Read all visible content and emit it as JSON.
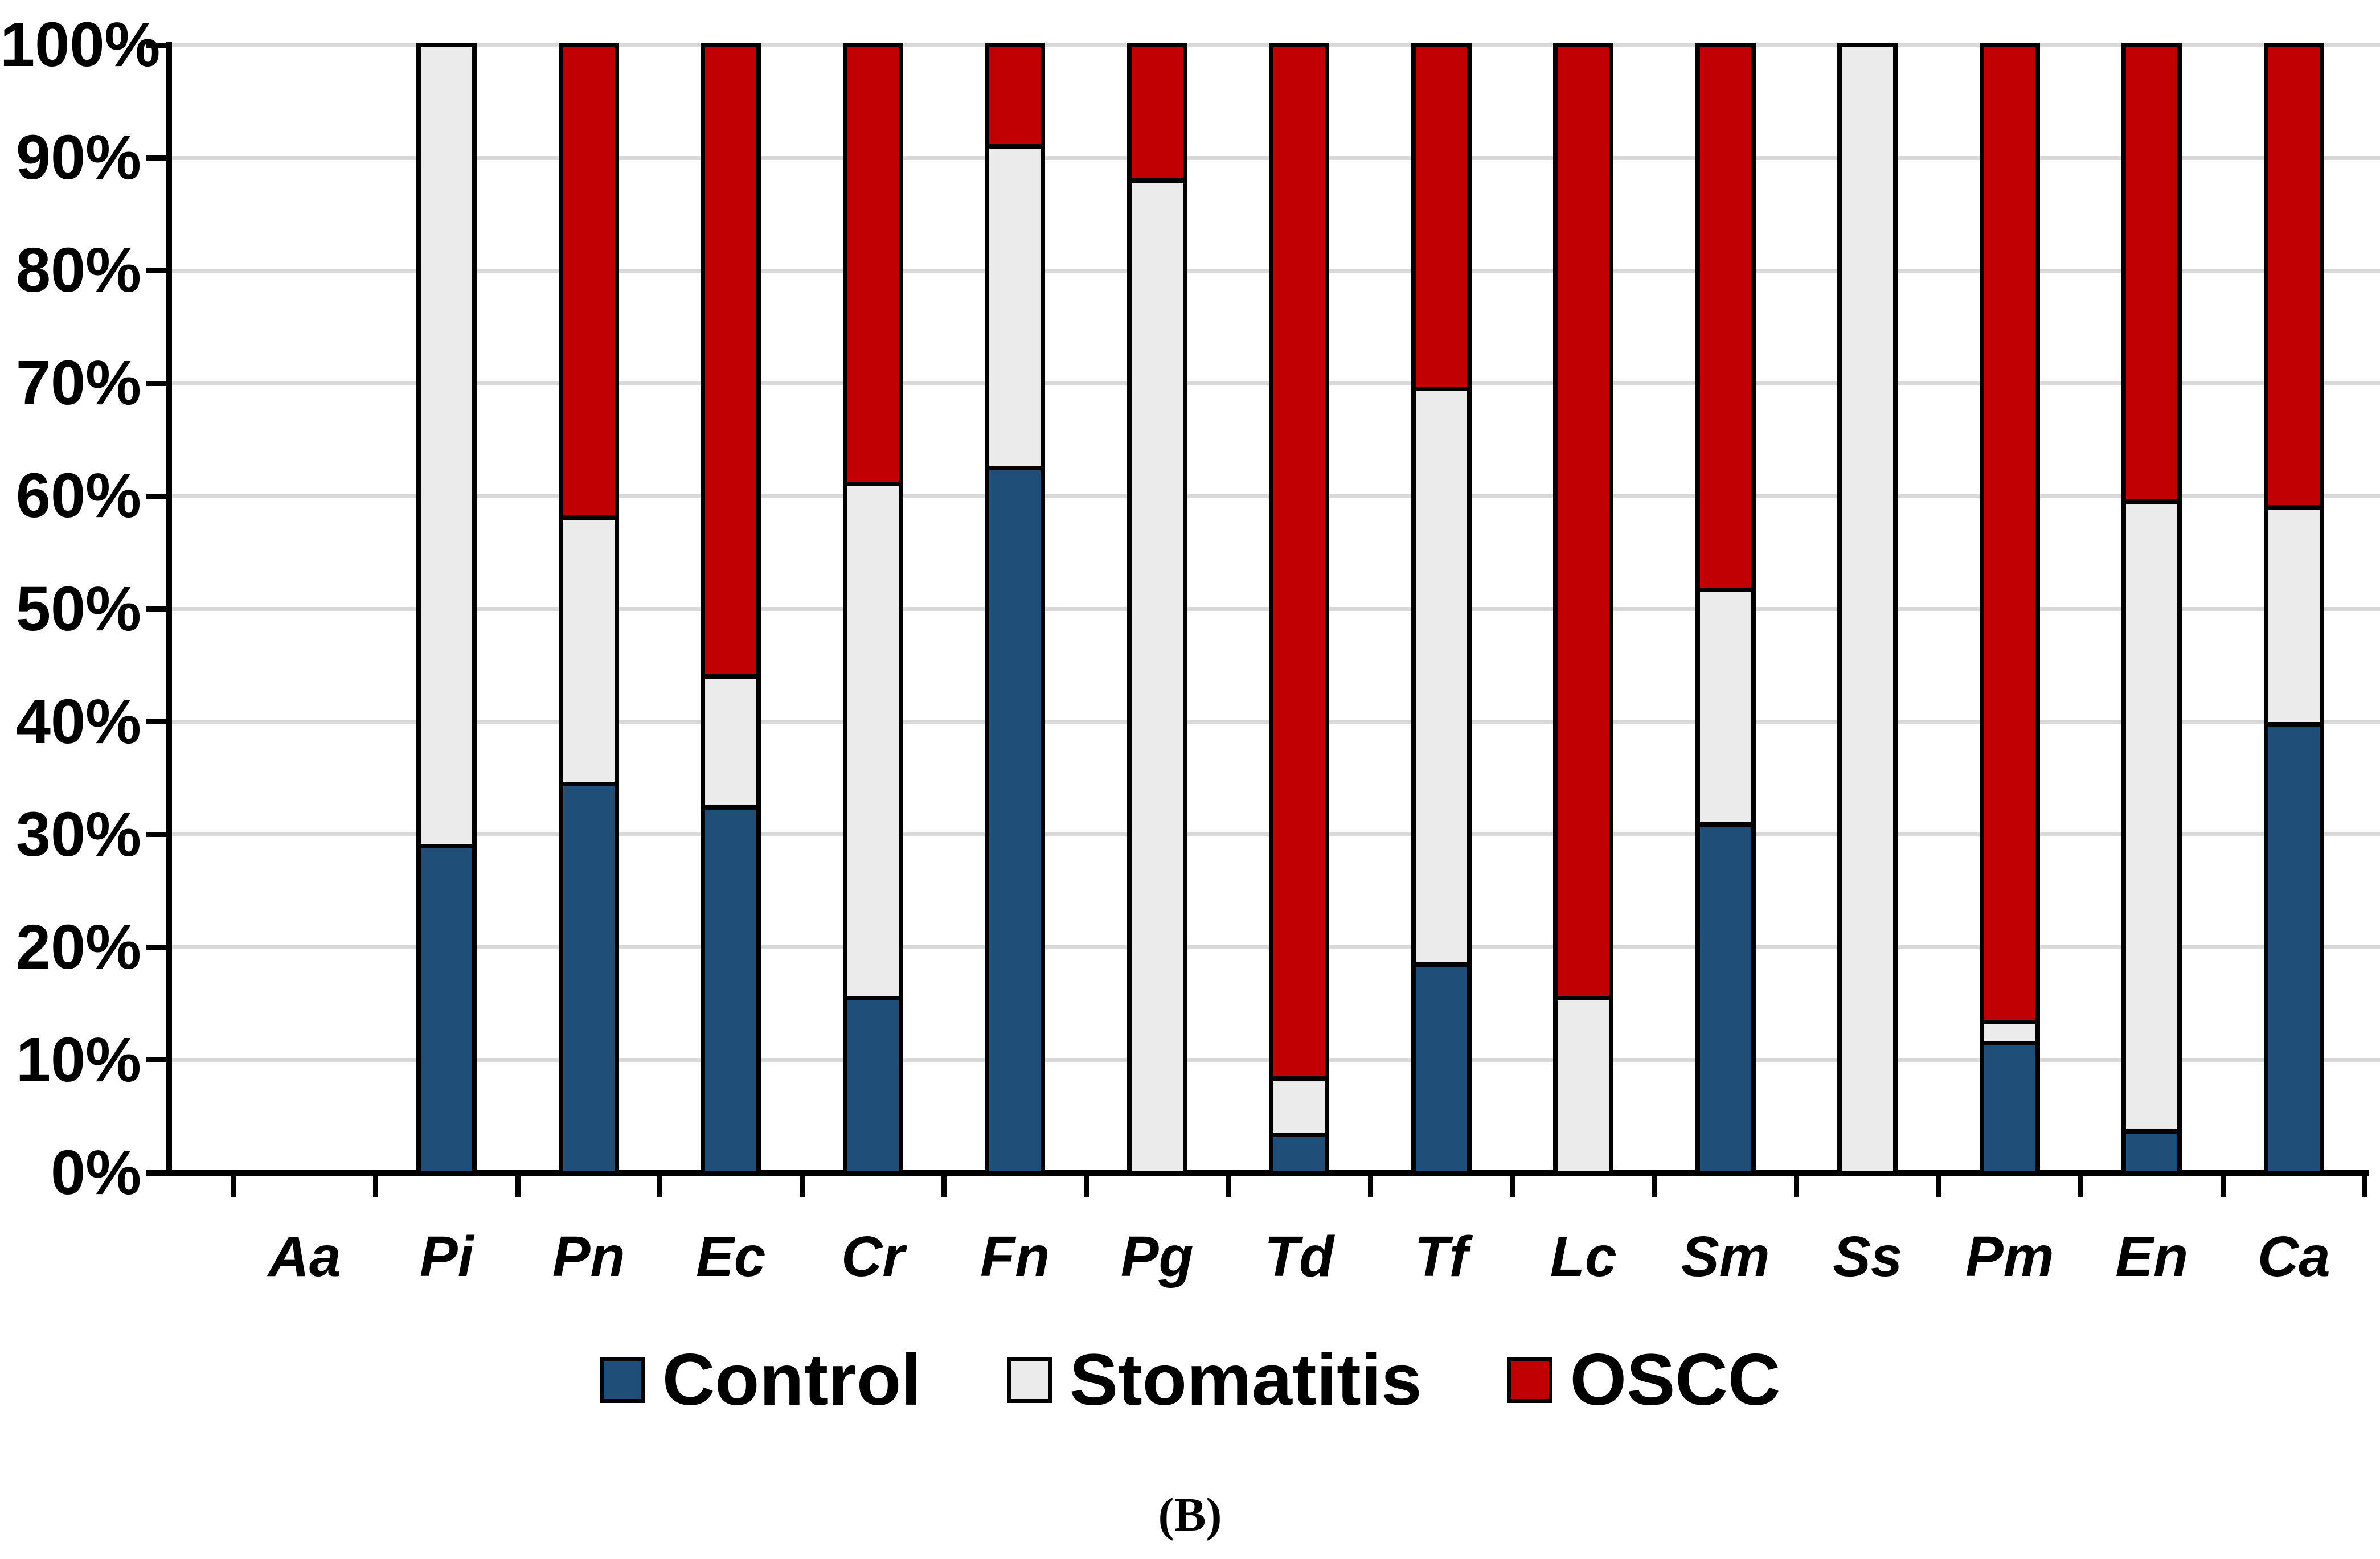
{
  "chart_data": {
    "type": "bar",
    "stacking": "percent",
    "title": "",
    "xlabel": "",
    "ylabel": "",
    "ylim": [
      0,
      100
    ],
    "grid": "horizontal-10pct",
    "legend_position": "bottom",
    "categories": [
      "Aa",
      "Pi",
      "Pn",
      "Ec",
      "Cr",
      "Fn",
      "Pg",
      "Td",
      "Tf",
      "Lc",
      "Sm",
      "Ss",
      "Pm",
      "En",
      "Ca"
    ],
    "series": [
      {
        "name": "Control",
        "color": "#1F4E79",
        "values": [
          0,
          29.0,
          34.5,
          32.4,
          15.5,
          62.5,
          0,
          3.4,
          18.5,
          0,
          30.9,
          0,
          11.5,
          3.7,
          39.8
        ]
      },
      {
        "name": "Stomatitis",
        "color": "#EBEBEB",
        "values": [
          0,
          71.0,
          23.6,
          11.6,
          45.6,
          28.5,
          88.0,
          5.0,
          51.0,
          15.5,
          20.8,
          100,
          1.9,
          55.8,
          19.2
        ]
      },
      {
        "name": "OSCC",
        "color": "#C00000",
        "values": [
          0,
          0,
          41.9,
          56.0,
          38.9,
          9.0,
          12.0,
          91.6,
          30.5,
          84.5,
          48.3,
          0,
          86.6,
          40.5,
          41.0
        ]
      }
    ],
    "y_ticks": [
      {
        "label": "0%",
        "value": 0
      },
      {
        "label": "10%",
        "value": 10
      },
      {
        "label": "20%",
        "value": 20
      },
      {
        "label": "30%",
        "value": 30
      },
      {
        "label": "40%",
        "value": 40
      },
      {
        "label": "50%",
        "value": 50
      },
      {
        "label": "60%",
        "value": 60
      },
      {
        "label": "70%",
        "value": 70
      },
      {
        "label": "80%",
        "value": 80
      },
      {
        "label": "90%",
        "value": 90
      },
      {
        "label": "100%",
        "value": 100
      }
    ]
  },
  "legend": {
    "items": [
      "Control",
      "Stomatitis",
      "OSCC"
    ]
  },
  "caption": "(B)",
  "colors": {
    "background": "#FFFFFF",
    "gridline": "#D9D9D9",
    "axis": "#000000",
    "bar_border": "#000000"
  }
}
